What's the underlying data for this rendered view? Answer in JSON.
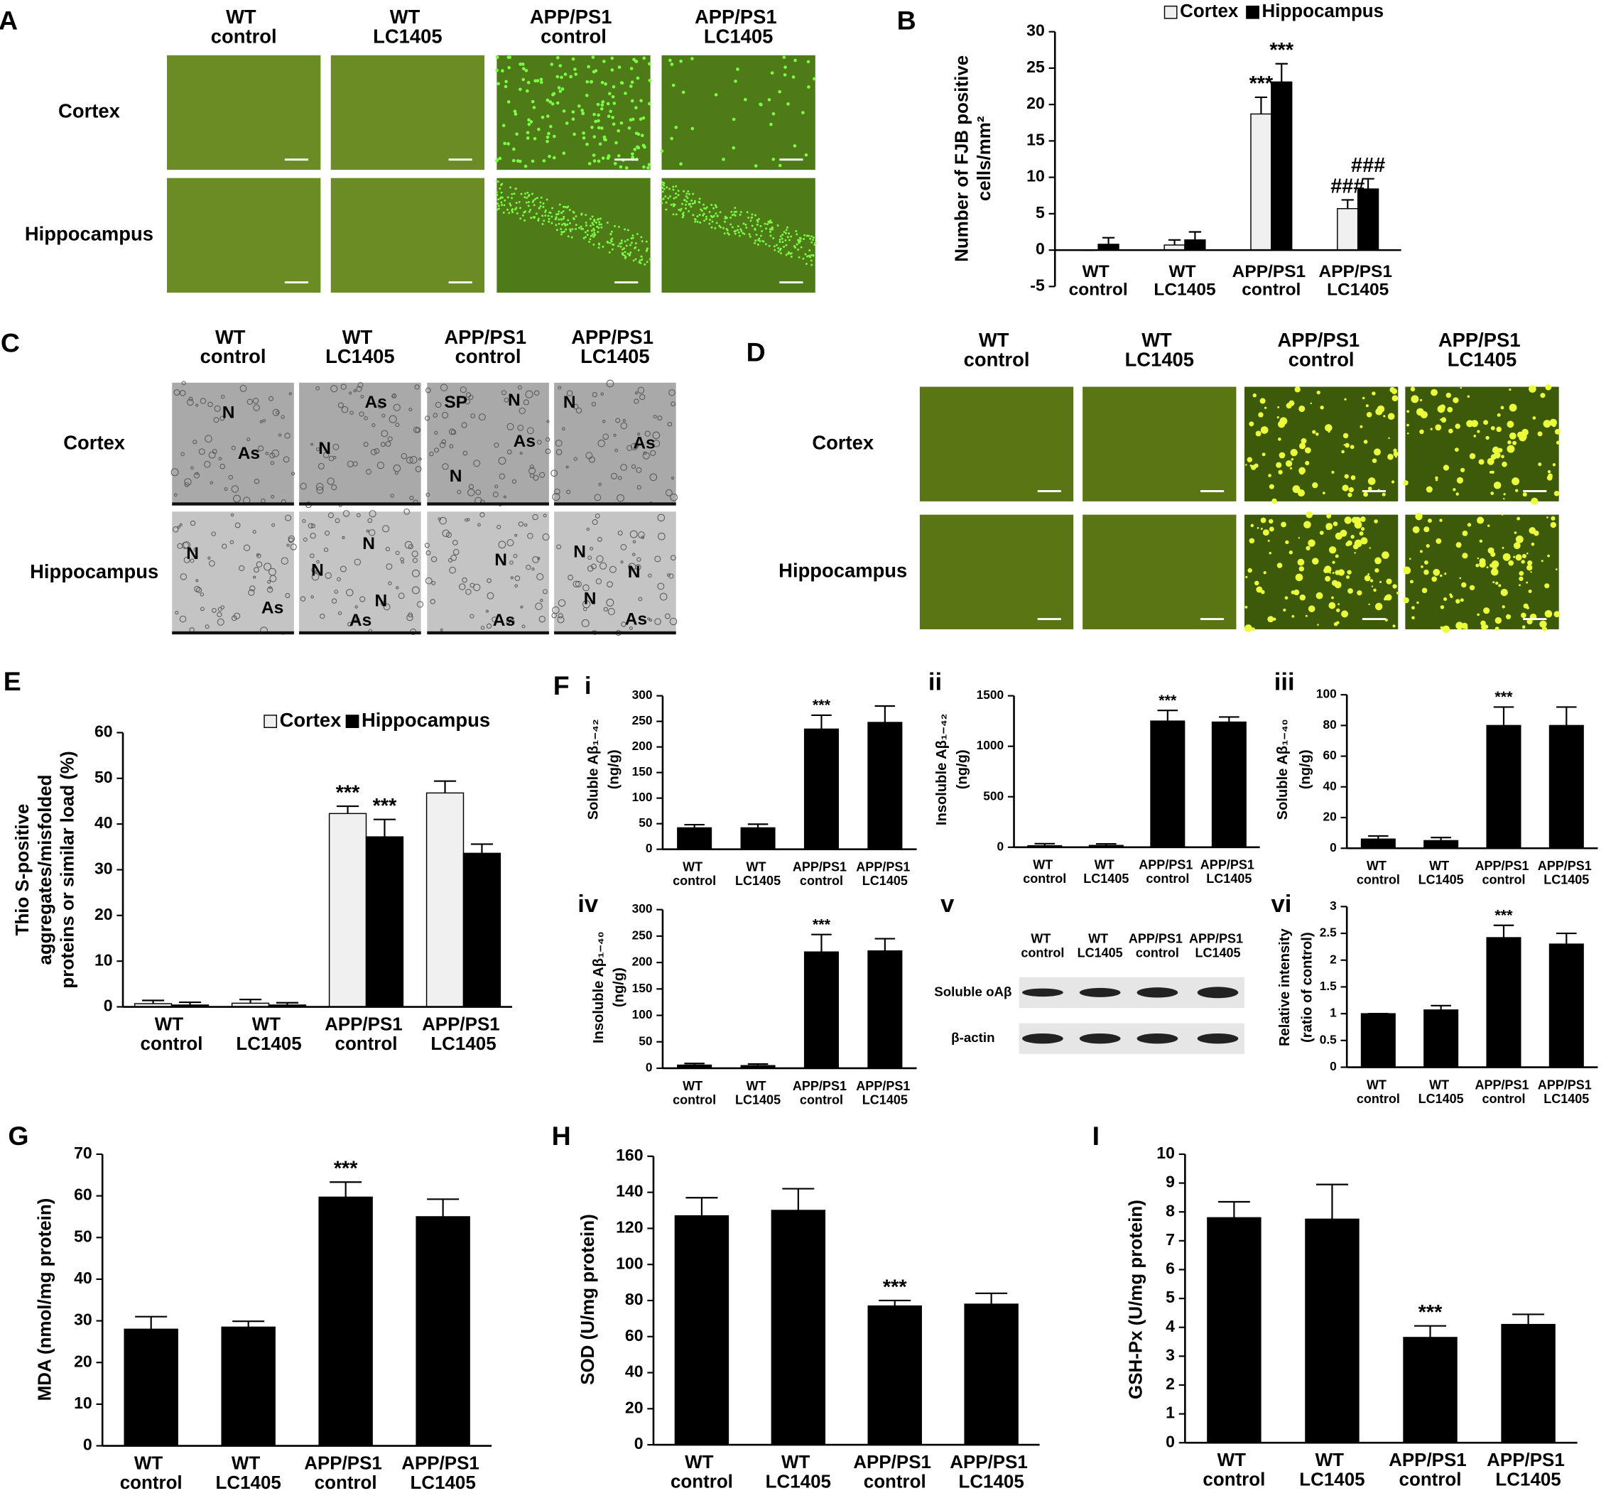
{
  "image_panels": [
    {
      "label": "A",
      "columns": [
        "WT control",
        "WT LC1405",
        "APP/PS1 control",
        "APP/PS1 LC1405"
      ],
      "rows": [
        "Cortex",
        "Hippocampus"
      ]
    },
    {
      "label": "C",
      "columns": [
        "WT control",
        "WT LC1405",
        "APP/PS1 control",
        "APP/PS1 LC1405"
      ],
      "rows": [
        "Cortex",
        "Hippocampus"
      ],
      "cell_labels": [
        [
          [
            "N",
            "As"
          ],
          [
            "As",
            "N"
          ],
          [
            "SP",
            "N",
            "As",
            "N"
          ],
          [
            "N",
            "As"
          ]
        ],
        [
          [
            "N",
            "As"
          ],
          [
            "N",
            "N",
            "N",
            "As"
          ],
          [
            "N",
            "As"
          ],
          [
            "N",
            "N",
            "N",
            "As"
          ]
        ]
      ]
    },
    {
      "label": "D",
      "columns": [
        "WT control",
        "WT LC1405",
        "APP/PS1 control",
        "APP/PS1 LC1405"
      ],
      "rows": [
        "Cortex",
        "Hippocampus"
      ]
    },
    {
      "label": "v",
      "columns": [
        "WT control",
        "WT LC1405",
        "APP/PS1 control",
        "APP/PS1 LC1405"
      ],
      "rows": [
        "Soluble oAβ",
        "β-actin"
      ]
    }
  ],
  "f_label": "F",
  "chart_data": [
    {
      "type": "bar",
      "panel": "B",
      "y_label": [
        "Number of FJB positive",
        "cells/mm²"
      ],
      "categories": [
        "WT control",
        "WT LC1405",
        "APP/PS1 control",
        "APP/PS1 LC1405"
      ],
      "series": [
        {
          "name": "Cortex",
          "color": "#f0f0f0",
          "values": [
            0,
            0.7,
            18.7,
            5.7
          ],
          "errors": [
            0,
            0.7,
            2.3,
            1.2
          ]
        },
        {
          "name": "Hippocampus",
          "color": "#000000",
          "values": [
            0.8,
            1.4,
            23.1,
            8.4
          ],
          "errors": [
            0.9,
            1.1,
            2.5,
            1.4
          ]
        }
      ],
      "annotations": [
        {
          "text": "***",
          "category_index": 2,
          "series_index": 0
        },
        {
          "text": "***",
          "category_index": 2,
          "series_index": 1
        },
        {
          "text": "###",
          "category_index": 3,
          "series_index": 0
        },
        {
          "text": "###",
          "category_index": 3,
          "series_index": 1
        }
      ],
      "ylim": [
        -5,
        30
      ],
      "yticks": [
        -5,
        0,
        5,
        10,
        15,
        20,
        25,
        30
      ],
      "legend": "top"
    },
    {
      "type": "bar",
      "panel": "E",
      "y_label": [
        "Thio S-positive",
        "aggregates/misfolded",
        "proteins or similar load (%)"
      ],
      "categories": [
        "WT control",
        "WT LC1405",
        "APP/PS1 control",
        "APP/PS1 LC1405"
      ],
      "series": [
        {
          "name": "Cortex",
          "color": "#f0f0f0",
          "values": [
            0.7,
            0.8,
            42.3,
            46.8
          ],
          "errors": [
            0.7,
            0.8,
            1.6,
            2.6
          ]
        },
        {
          "name": "Hippocampus",
          "color": "#000000",
          "values": [
            0.4,
            0.4,
            37.2,
            33.6
          ],
          "errors": [
            0.6,
            0.5,
            3.8,
            2.0
          ]
        }
      ],
      "annotations": [
        {
          "text": "***",
          "category_index": 2,
          "series_index": 0
        },
        {
          "text": "***",
          "category_index": 2,
          "series_index": 1
        }
      ],
      "ylim": [
        0,
        60
      ],
      "yticks": [
        0,
        10,
        20,
        30,
        40,
        50,
        60
      ],
      "legend": "top"
    },
    {
      "type": "bar",
      "panel": "i",
      "y_label": [
        "Soluble Aβ₁₋₄₂",
        "(ng/g)"
      ],
      "categories": [
        "WT control",
        "WT LC1405",
        "APP/PS1 control",
        "APP/PS1 LC1405"
      ],
      "color": "#000000",
      "values": [
        42,
        42,
        235,
        248
      ],
      "errors": [
        6,
        7,
        27,
        32
      ],
      "annotations": [
        {
          "text": "***",
          "category_index": 2
        }
      ],
      "ylim": [
        0,
        300
      ],
      "yticks": [
        0,
        50,
        100,
        150,
        200,
        250,
        300
      ]
    },
    {
      "type": "bar",
      "panel": "ii",
      "y_label": [
        "Insoluble Aβ₁₋₄₂",
        "(ng/g)"
      ],
      "categories": [
        "WT control",
        "WT LC1405",
        "APP/PS1 control",
        "APP/PS1 LC1405"
      ],
      "color": "#000000",
      "values": [
        15,
        18,
        1250,
        1240
      ],
      "errors": [
        20,
        15,
        105,
        50
      ],
      "annotations": [
        {
          "text": "***",
          "category_index": 2
        }
      ],
      "ylim": [
        0,
        1500
      ],
      "yticks": [
        0,
        500,
        1000,
        1500
      ]
    },
    {
      "type": "bar",
      "panel": "iii",
      "y_label": [
        "Soluble Aβ₁₋₄₀",
        "(ng/g)"
      ],
      "categories": [
        "WT control",
        "WT LC1405",
        "APP/PS1 control",
        "APP/PS1 LC1405"
      ],
      "color": "#000000",
      "values": [
        6,
        5,
        80,
        80
      ],
      "errors": [
        2,
        2,
        12,
        12
      ],
      "annotations": [
        {
          "text": "***",
          "category_index": 2
        }
      ],
      "ylim": [
        0,
        100
      ],
      "yticks": [
        0,
        20,
        40,
        60,
        80,
        100
      ]
    },
    {
      "type": "bar",
      "panel": "iv",
      "y_label": [
        "Insoluble Aβ₁₋₄₀",
        "(ng/g)"
      ],
      "categories": [
        "WT control",
        "WT LC1405",
        "APP/PS1 control",
        "APP/PS1 LC1405"
      ],
      "color": "#000000",
      "values": [
        6,
        5,
        220,
        222
      ],
      "errors": [
        3,
        3,
        33,
        23
      ],
      "annotations": [
        {
          "text": "***",
          "category_index": 2
        }
      ],
      "ylim": [
        0,
        300
      ],
      "yticks": [
        0,
        50,
        100,
        150,
        200,
        250,
        300
      ]
    },
    {
      "type": "bar",
      "panel": "vi",
      "y_label": [
        "Relative intensity",
        "(ratio of control)"
      ],
      "categories": [
        "WT control",
        "WT LC1405",
        "APP/PS1 control",
        "APP/PS1 LC1405"
      ],
      "color": "#000000",
      "values": [
        1,
        1.07,
        2.42,
        2.3
      ],
      "errors": [
        0,
        0.08,
        0.23,
        0.2
      ],
      "annotations": [
        {
          "text": "***",
          "category_index": 2
        }
      ],
      "ylim": [
        0,
        3
      ],
      "yticks": [
        0,
        0.5,
        1,
        1.5,
        2,
        2.5,
        3
      ]
    },
    {
      "type": "bar",
      "panel": "G",
      "y_label": [
        "MDA (nmol/mg protein)"
      ],
      "categories": [
        "WT control",
        "WT LC1405",
        "APP/PS1 control",
        "APP/PS1 LC1405"
      ],
      "color": "#000000",
      "values": [
        28,
        28.5,
        59.7,
        55
      ],
      "errors": [
        3,
        1.4,
        3.6,
        4.2
      ],
      "annotations": [
        {
          "text": "***",
          "category_index": 2
        }
      ],
      "ylim": [
        0,
        70
      ],
      "yticks": [
        0,
        10,
        20,
        30,
        40,
        50,
        60,
        70
      ]
    },
    {
      "type": "bar",
      "panel": "H",
      "y_label": [
        "SOD (U/mg protein)"
      ],
      "categories": [
        "WT control",
        "WT LC1405",
        "APP/PS1 control",
        "APP/PS1 LC1405"
      ],
      "color": "#000000",
      "values": [
        127,
        130,
        77,
        78
      ],
      "errors": [
        10,
        12,
        3,
        6
      ],
      "annotations": [
        {
          "text": "***",
          "category_index": 2
        }
      ],
      "ylim": [
        0,
        160
      ],
      "yticks": [
        0,
        20,
        40,
        60,
        80,
        100,
        120,
        140,
        160
      ]
    },
    {
      "type": "bar",
      "panel": "I",
      "y_label": [
        "GSH-Px (U/mg protein)"
      ],
      "categories": [
        "WT control",
        "WT LC1405",
        "APP/PS1 control",
        "APP/PS1 LC1405"
      ],
      "color": "#000000",
      "values": [
        7.8,
        7.75,
        3.65,
        4.1
      ],
      "errors": [
        0.55,
        1.2,
        0.4,
        0.35
      ],
      "annotations": [
        {
          "text": "***",
          "category_index": 2
        }
      ],
      "ylim": [
        0,
        10
      ],
      "yticks": [
        0,
        1,
        2,
        3,
        4,
        5,
        6,
        7,
        8,
        9,
        10
      ]
    }
  ]
}
